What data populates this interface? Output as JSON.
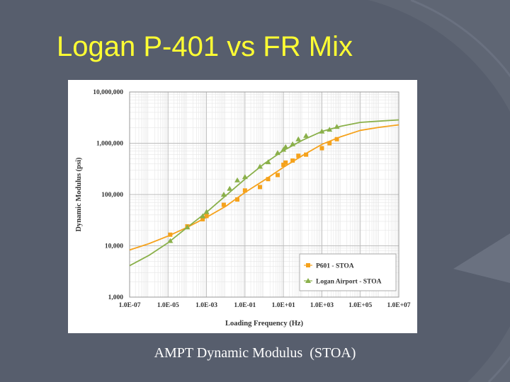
{
  "slide": {
    "title": "Logan P-401 vs FR Mix",
    "caption": "AMPT Dynamic Modulus  (STOA)"
  },
  "colors": {
    "background": "#575e6d",
    "title": "#ffff33",
    "p601": "#f5a21c",
    "logan": "#8ab04a"
  },
  "chart_data": {
    "type": "scatter",
    "title": "",
    "xlabel": "Loading Frequency (Hz)",
    "ylabel": "Dynamic Modulus (psi)",
    "x_scale": "log",
    "y_scale": "log",
    "xlim": [
      1e-07,
      10000000.0
    ],
    "ylim": [
      1000,
      10000000
    ],
    "x_ticks": [
      "1.0E-07",
      "1.0E-05",
      "1.0E-03",
      "1.0E-01",
      "1.0E+01",
      "1.0E+03",
      "1.0E+05",
      "1.0E+07"
    ],
    "y_ticks": [
      "1,000",
      "10,000",
      "100,000",
      "1,000,000",
      "10,000,000"
    ],
    "grid": true,
    "legend": "bottom-right",
    "series": [
      {
        "name": "P601 - STOA",
        "marker": "square",
        "color": "#f5a21c",
        "x": [
          1.3e-05,
          0.0001,
          0.00063,
          0.001,
          0.0079,
          0.04,
          0.1,
          0.6,
          1.6,
          5,
          10,
          13,
          30,
          60,
          150,
          1000,
          2500,
          6000
        ],
        "y": [
          16500,
          24000,
          33000,
          38000,
          63000,
          80000,
          120000,
          140000,
          200000,
          240000,
          380000,
          420000,
          460000,
          570000,
          600000,
          800000,
          1000000,
          1200000
        ]
      },
      {
        "name": "Logan Airport - STOA",
        "marker": "triangle",
        "color": "#8ab04a",
        "x": [
          1.3e-05,
          0.0001,
          0.00063,
          0.001,
          0.0079,
          0.016,
          0.04,
          0.1,
          0.6,
          1.6,
          5,
          10,
          13,
          30,
          60,
          150,
          1000,
          2500,
          6000
        ],
        "y": [
          12500,
          23000,
          38000,
          46000,
          100000,
          130000,
          190000,
          220000,
          350000,
          430000,
          650000,
          750000,
          850000,
          960000,
          1200000,
          1400000,
          1700000,
          1850000,
          2100000
        ]
      }
    ],
    "fit_curves": [
      {
        "series": "P601 - STOA",
        "x": [
          1e-07,
          1e-06,
          1e-05,
          0.0001,
          0.001,
          0.01,
          0.1,
          1,
          10,
          100,
          1000,
          10000,
          100000,
          1000000,
          10000000
        ],
        "y": [
          8300,
          11000,
          15500,
          23000,
          36000,
          59000,
          110000,
          190000,
          340000,
          580000,
          950000,
          1350000,
          1780000,
          2050000,
          2280000
        ]
      },
      {
        "series": "Logan Airport - STOA",
        "x": [
          1e-07,
          1e-06,
          1e-05,
          0.0001,
          0.001,
          0.01,
          0.1,
          1,
          10,
          100,
          1000,
          10000,
          100000,
          1000000,
          10000000
        ],
        "y": [
          4100,
          6500,
          11500,
          23000,
          45000,
          95000,
          200000,
          400000,
          720000,
          1150000,
          1700000,
          2150000,
          2550000,
          2700000,
          2850000
        ]
      }
    ]
  }
}
